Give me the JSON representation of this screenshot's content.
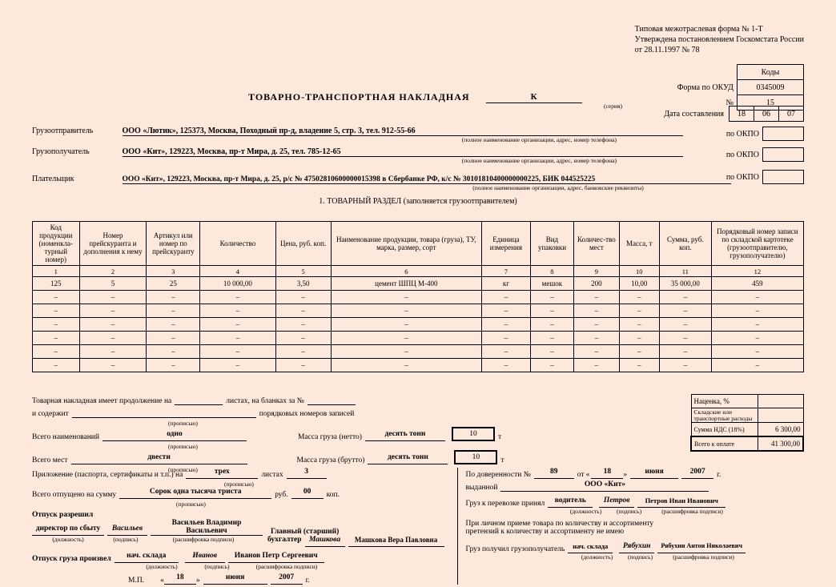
{
  "header": {
    "line1": "Типовая межотраслевая форма № 1-Т",
    "line2": "Утверждена постановлением Госкомстата России",
    "line3": "от 28.11.1997 № 78"
  },
  "codes": {
    "label_kody": "Коды",
    "label_okud": "Форма по ОКУД",
    "okud": "0345009",
    "label_no": "№",
    "no": "15"
  },
  "title": "ТОВАРНО-ТРАНСПОРТНАЯ НАКЛАДНАЯ",
  "serial": "К",
  "serial_sub": "(серия)",
  "date": {
    "label": "Дата составления",
    "d": "18",
    "m": "06",
    "y": "07"
  },
  "okpo_label": "по ОКПО",
  "sender": {
    "label": "Грузоотправитель",
    "value": "ООО «Лютик», 125373, Москва, Походный пр-д, владение 5, стр. 3, тел. 912-55-66",
    "sub": "(полное наименование организации, адрес, номер телефона)"
  },
  "receiver": {
    "label": "Грузополучатель",
    "value": "ООО «Кит», 129223, Москва, пр-т Мира, д. 25, тел. 785-12-65",
    "sub": "(полное наименование организации, адрес, номер телефона)"
  },
  "payer": {
    "label": "Плательщик",
    "value": "ООО «Кит», 129223, Москва, пр-т Мира, д. 25,  р/с № 47502810600000015398 в Сбербанке РФ, к/с № 30101810400000000225, БИК 044525225",
    "sub": "(полное наименование организации, адрес, банковские реквизиты)"
  },
  "section1": "1. ТОВАРНЫЙ РАЗДЕЛ (заполняется грузоотправителем)",
  "cols": [
    "Код продукции (номенкла-турный номер)",
    "Номер прейскуранта и дополнения к нему",
    "Артикул или номер по прейскуранту",
    "Количество",
    "Цена, руб. коп.",
    "Наименование продукции, товара (груза), ТУ, марка, размер, сорт",
    "Единица измерения",
    "Вид упаковки",
    "Количес-тво мест",
    "Масса, т",
    "Сумма, руб. коп.",
    "Порядковый номер записи по складской картотеке (грузоотправителю, грузополучателю)"
  ],
  "nums": [
    "1",
    "2",
    "3",
    "4",
    "5",
    "6",
    "7",
    "8",
    "9",
    "10",
    "11",
    "12"
  ],
  "row1": [
    "125",
    "5",
    "25",
    "10 000,00",
    "3,50",
    "цемент ШПЦ М-400",
    "кг",
    "мешок",
    "200",
    "10,00",
    "35 000,00",
    "459"
  ],
  "dash": "–",
  "summary": {
    "cont": "Товарная накладная имеет продолжение на",
    "sheets": "листах, на бланках за №",
    "contains": "и содержит",
    "records": "порядковых номеров записей",
    "propis": "(прописью)",
    "total_names": "Всего наименований",
    "one": "одно",
    "mass_net": "Масса груза (нетто)",
    "ten_t": "десять тонн",
    "ten": "10",
    "t": "т",
    "total_places": "Всего мест",
    "twohundred": "двести",
    "mass_gross": "Масса груза (брутто)",
    "markup": "Наценка, %",
    "skladrash": "Складские или транспортные расходы",
    "nds": "Сумма НДС (18%)",
    "nds_val": "6 300,00",
    "total": "Всего к оплате",
    "total_val": "41 300,00",
    "app": "Приложение (паспорта, сертификаты и т.п.) на",
    "three": "трех",
    "listah": "листах",
    "three3": "3",
    "released": "Всего отпущено на сумму",
    "sum_words": "Сорок одна тысяча триста",
    "rub": "руб.",
    "kop": "коп.",
    "zero": "00"
  },
  "sig": {
    "allow": "Отпуск разрешил",
    "dir": "директор по сбыту",
    "vasiliev": "Васильев",
    "vasiliev_full": "Васильев Владимир Васильевич",
    "chief": "Главный (старший)",
    "buh": "бухгалтер",
    "mashkova": "Машкова",
    "mashkova_full": "Машкова Вера Павловна",
    "release": "Отпуск груза произвел",
    "nach": "нач. склада",
    "ivanov": "Иванов",
    "ivanov_full": "Иванов Петр Сергеевич",
    "mp": "М.П.",
    "d": "18",
    "month": "июня",
    "year": "2007",
    "g": "г.",
    "dolj": "(должность)",
    "podpis": "(подпись)",
    "rasf": "(расшифровка подписи)",
    "dover": "По доверенности №",
    "dover_no": "89",
    "ot": "от",
    "vydano": "выданной",
    "kit": "ООО «Кит»",
    "cargo": "Груз к перевозке принял",
    "driver": "водитель",
    "petrov": "Петров",
    "petrov_full": "Петров Иван Иванович",
    "personal": "При личном приеме товара по количеству и ассортименту",
    "nopret": "претензий к количеству и ассортименту не имею",
    "received": "Груз получил грузополучатель",
    "ryab": "Рябухин",
    "ryab_full": "Рябухин Антон Николаевич"
  }
}
